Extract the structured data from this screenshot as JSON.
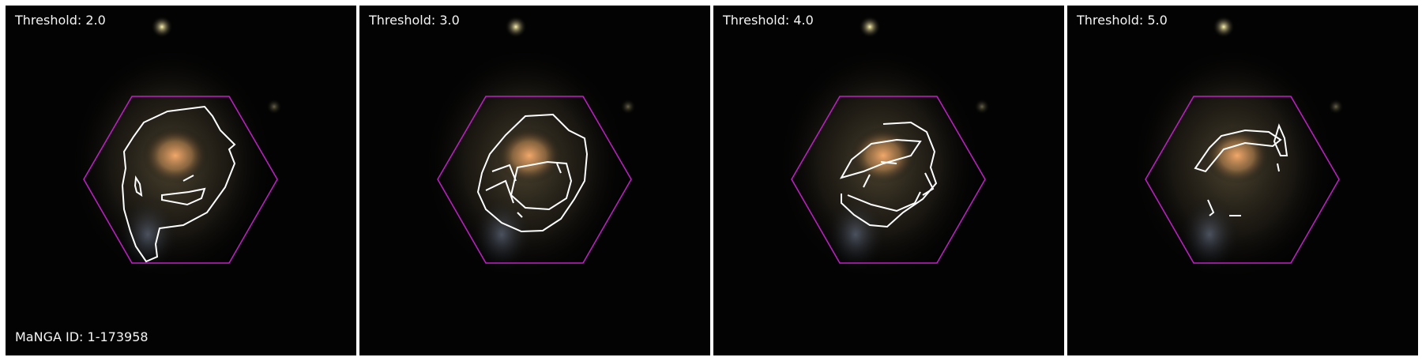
{
  "panels": [
    {
      "label": "Threshold: 2.0"
    },
    {
      "label": "Threshold: 3.0"
    },
    {
      "label": "Threshold: 4.0"
    },
    {
      "label": "Threshold: 5.0"
    }
  ],
  "manga_id": "MaNGA ID: 1-173958",
  "colors": {
    "hexagon": "#c21fc8",
    "contour": "#ffffff",
    "background": "#030303",
    "galaxy_core": "#f2a86a",
    "galaxy_halo": "#8a7a55",
    "outer_arm": "#8fa0c2"
  }
}
